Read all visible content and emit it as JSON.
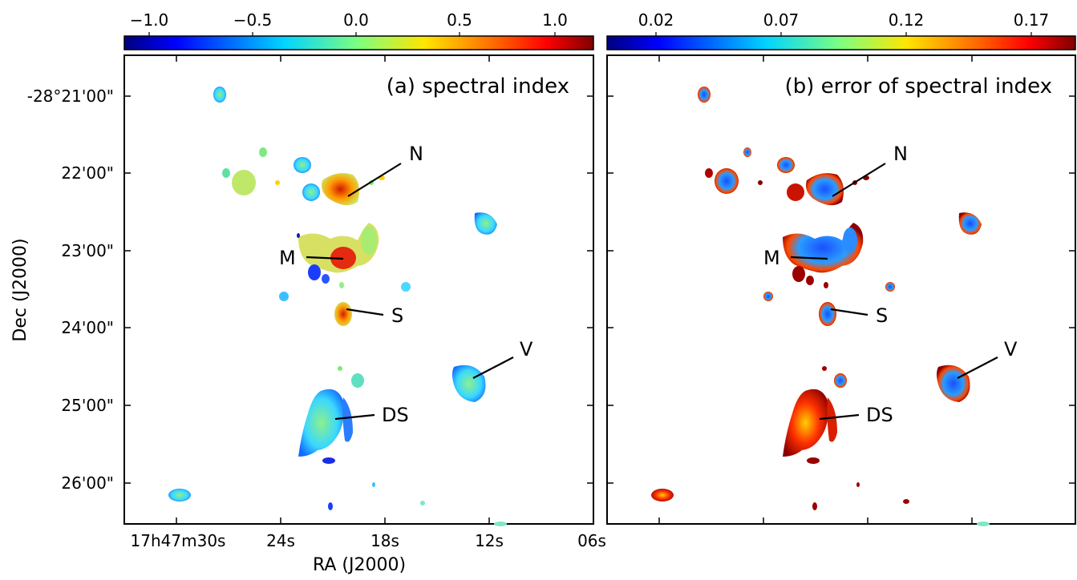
{
  "panel_a": {
    "label": "(a) spectral index",
    "colorbar_ticks": [
      "−1.0",
      "−0.5",
      "0.0",
      "0.5",
      "1.0"
    ]
  },
  "panel_b": {
    "label": "(b) error of spectral index",
    "colorbar_ticks": [
      "0.02",
      "0.07",
      "0.12",
      "0.17"
    ]
  },
  "axes": {
    "ylabel": "Dec (J2000)",
    "xlabel": "RA (J2000)",
    "y_ticks": [
      "-28°21'00\"",
      "22'00\"",
      "23'00\"",
      "24'00\"",
      "25'00\"",
      "26'00\""
    ],
    "x_ticks": [
      "17h47m30s",
      "24s",
      "18s",
      "12s",
      "06s"
    ]
  },
  "annotations": [
    "N",
    "M",
    "S",
    "V",
    "DS"
  ],
  "colormap": [
    "#00007f",
    "#0000ff",
    "#00a8ff",
    "#44ffb3",
    "#ffe600",
    "#ff5f00",
    "#ff0000",
    "#7f0000"
  ]
}
